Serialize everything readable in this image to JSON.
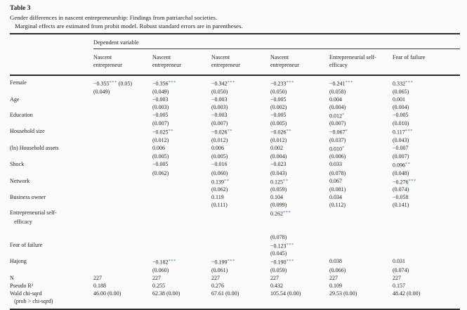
{
  "title": {
    "label": "Table 3",
    "caption": "Gender differences in nascent entrepreneurship: Findings from patriarchal societies.",
    "note": "Marginal effects are estimated from probit model. Robust standard errors are in parentheses."
  },
  "table": {
    "star_color": "#3c78b4",
    "dependent_variable_label": "Dependent variable",
    "columns": [
      {
        "line1": "Nascent",
        "line2": "entrepreneur"
      },
      {
        "line1": "Nascent",
        "line2": "entrepreneur"
      },
      {
        "line1": "Nascent",
        "line2": "entrepreneur"
      },
      {
        "line1": "Nascent",
        "line2": "entrepreneur"
      },
      {
        "line1": "Entrepreneurial self-",
        "line2": "efficacy"
      },
      {
        "line1": "Fear of failure",
        "line2": ""
      }
    ],
    "lines": [
      [
        "Female",
        "−0.355*** (0.05)",
        "−0.356***",
        "−0.342***",
        "−0.233***",
        "−0.241***",
        "0.332***"
      ],
      [
        "",
        "(0.049)",
        "(0.049)",
        "(0.050)",
        "(0.050)",
        "(0.058)",
        "(0.065)"
      ],
      [
        "Age",
        "",
        "−0.003",
        "−0.003",
        "−0.005",
        "0.004",
        "0.001"
      ],
      [
        "",
        "",
        "(0.003)",
        "(0.003)",
        "(0.002)",
        "(0.004)",
        "(0.004)"
      ],
      [
        "Education",
        "",
        "−0.005",
        "−0.003",
        "−0.005",
        "0.012*",
        "−0.005"
      ],
      [
        "",
        "",
        "(0.007)",
        "(0.007)",
        "(0.005)",
        "(0.007)",
        "(0.010)"
      ],
      [
        "Household size",
        "",
        "−0.025**",
        "−0.026**",
        "−0.026**",
        "−0.067*",
        "0.117***"
      ],
      [
        "",
        "",
        "(0.012)",
        "(0.012)",
        "(0.012)",
        "(0.037)",
        "(0.043)"
      ],
      [
        "(ln) Household assets",
        "",
        "0.006",
        "0.006",
        "0.002",
        "0.010*",
        "−0.007"
      ],
      [
        "",
        "",
        "(0.005)",
        "(0.005)",
        "(0.004)",
        "(0.006)",
        "(0.007)"
      ],
      [
        "Shock",
        "",
        "−0.005",
        "−0.016",
        "−0.023",
        "0.033",
        "0.096**"
      ],
      [
        "",
        "",
        "(0.062)",
        "(0.060)",
        "(0.043)",
        "(0.078)",
        "(0.048)"
      ],
      [
        "Network",
        "",
        "",
        "0.139**",
        "0.125**",
        "0.067",
        "−0.276***"
      ],
      [
        "",
        "",
        "",
        "(0.062)",
        "(0.059)",
        "(0.081)",
        "(0.074)"
      ],
      [
        "Business owner",
        "",
        "",
        "0.119",
        "0.104",
        "0.034",
        "−0.058"
      ],
      [
        "",
        "",
        "",
        "(0.111)",
        "(0.099)",
        "(0.112)",
        "(0.141)"
      ],
      [
        "Entrepreneurial self-",
        "",
        "",
        "",
        "0.262***",
        "",
        ""
      ],
      [
        "   efficacy",
        "",
        "",
        "",
        "",
        "",
        ""
      ],
      [
        "",
        "",
        "",
        "",
        "",
        "",
        ""
      ],
      [
        "",
        "",
        "",
        "",
        "(0.078)",
        "",
        ""
      ],
      [
        "Fear of failure",
        "",
        "",
        "",
        "−0.123***",
        "",
        ""
      ],
      [
        "",
        "",
        "",
        "",
        "(0.045)",
        "",
        ""
      ],
      [
        "Hajong",
        "",
        "−0.182***",
        "−0.199***",
        "−0.190***",
        "0.038",
        "0.031"
      ],
      [
        "",
        "",
        "(0.060)",
        "(0.061)",
        "(0.059)",
        "(0.066)",
        "(0.074)"
      ],
      [
        "N",
        "227",
        "227",
        "227",
        "227",
        "227",
        "227"
      ],
      [
        "Pseudo R²",
        "0.188",
        "0.255",
        "0.276",
        "0.432",
        "0.109",
        "0.157"
      ],
      [
        "Wald chi-sqrd",
        "46.00 (0.00)",
        "62.38 (0.00)",
        "67.61 (0.00)",
        "105.54 (0.00)",
        "29.53 (0.00)",
        "48.42 (0.00)"
      ],
      [
        "   (prob > chi-sqrd)",
        "",
        "",
        "",
        "",
        "",
        ""
      ]
    ]
  }
}
